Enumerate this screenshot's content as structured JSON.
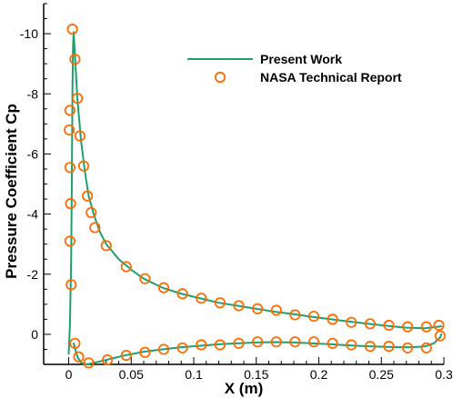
{
  "chart_data": {
    "type": "line",
    "xlabel": "X (m)",
    "ylabel": "Pressure Coefficient  Cp",
    "xlim": [
      -0.02,
      0.3
    ],
    "ylim": [
      1.0,
      -11.0
    ],
    "y_axis_inverted": true,
    "grid": false,
    "legend_position": "top-right",
    "x_ticks": [
      0,
      0.05,
      0.1,
      0.15,
      0.2,
      0.25,
      0.3
    ],
    "x_tick_labels": [
      "0",
      "0.05",
      "0.1",
      "0.15",
      "0.2",
      "0.25",
      "0.3"
    ],
    "y_ticks": [
      -10,
      -8,
      -6,
      -4,
      -2,
      0
    ],
    "y_tick_labels": [
      "-10",
      "-8",
      "-6",
      "-4",
      "-2",
      "0"
    ],
    "colors": {
      "line": "#1ea06a",
      "markers": "#ff6a00",
      "axes": "#000000"
    },
    "series": [
      {
        "name": "Present Work",
        "kind": "line",
        "segments": [
          [
            [
              0.0,
              0.65
            ],
            [
              0.001,
              -0.3
            ],
            [
              0.002,
              -2.5
            ],
            [
              0.0025,
              -5.0
            ],
            [
              0.003,
              -8.0
            ],
            [
              0.0035,
              -9.6
            ],
            [
              0.004,
              -10.05
            ],
            [
              0.005,
              -9.3
            ],
            [
              0.007,
              -7.8
            ],
            [
              0.01,
              -6.4
            ],
            [
              0.013,
              -5.4
            ],
            [
              0.016,
              -4.6
            ],
            [
              0.02,
              -4.0
            ],
            [
              0.025,
              -3.4
            ],
            [
              0.03,
              -3.0
            ],
            [
              0.04,
              -2.5
            ],
            [
              0.05,
              -2.15
            ],
            [
              0.06,
              -1.85
            ],
            [
              0.075,
              -1.55
            ],
            [
              0.09,
              -1.35
            ],
            [
              0.105,
              -1.2
            ],
            [
              0.12,
              -1.05
            ],
            [
              0.135,
              -0.95
            ],
            [
              0.15,
              -0.85
            ],
            [
              0.165,
              -0.75
            ],
            [
              0.18,
              -0.67
            ],
            [
              0.195,
              -0.58
            ],
            [
              0.21,
              -0.5
            ],
            [
              0.225,
              -0.42
            ],
            [
              0.24,
              -0.35
            ],
            [
              0.255,
              -0.28
            ],
            [
              0.27,
              -0.22
            ],
            [
              0.285,
              -0.2
            ],
            [
              0.295,
              -0.25
            ],
            [
              0.298,
              -0.27
            ]
          ],
          [
            [
              0.004,
              0.3
            ],
            [
              0.007,
              0.75
            ],
            [
              0.01,
              0.95
            ],
            [
              0.015,
              1.0
            ],
            [
              0.02,
              0.95
            ],
            [
              0.03,
              0.85
            ],
            [
              0.045,
              0.7
            ],
            [
              0.06,
              0.58
            ],
            [
              0.075,
              0.5
            ],
            [
              0.09,
              0.43
            ],
            [
              0.105,
              0.38
            ],
            [
              0.12,
              0.33
            ],
            [
              0.135,
              0.3
            ],
            [
              0.15,
              0.27
            ],
            [
              0.165,
              0.26
            ],
            [
              0.18,
              0.27
            ],
            [
              0.195,
              0.3
            ],
            [
              0.21,
              0.33
            ],
            [
              0.225,
              0.37
            ],
            [
              0.24,
              0.4
            ],
            [
              0.255,
              0.42
            ],
            [
              0.265,
              0.43
            ],
            [
              0.275,
              0.43
            ],
            [
              0.285,
              0.4
            ],
            [
              0.292,
              0.3
            ],
            [
              0.297,
              0.1
            ],
            [
              0.298,
              0.0
            ]
          ]
        ]
      },
      {
        "name": "NASA Technical Report",
        "kind": "scatter",
        "points": [
          [
            0.003,
            -10.15
          ],
          [
            0.005,
            -9.15
          ],
          [
            0.007,
            -7.85
          ],
          [
            0.009,
            -6.6
          ],
          [
            0.012,
            -5.6
          ],
          [
            0.015,
            -4.6
          ],
          [
            0.018,
            -4.05
          ],
          [
            0.021,
            -3.55
          ],
          [
            0.03,
            -2.95
          ],
          [
            0.046,
            -2.25
          ],
          [
            0.061,
            -1.85
          ],
          [
            0.076,
            -1.55
          ],
          [
            0.091,
            -1.35
          ],
          [
            0.106,
            -1.2
          ],
          [
            0.121,
            -1.05
          ],
          [
            0.136,
            -0.95
          ],
          [
            0.151,
            -0.85
          ],
          [
            0.166,
            -0.8
          ],
          [
            0.181,
            -0.65
          ],
          [
            0.196,
            -0.6
          ],
          [
            0.211,
            -0.5
          ],
          [
            0.226,
            -0.4
          ],
          [
            0.241,
            -0.35
          ],
          [
            0.256,
            -0.3
          ],
          [
            0.271,
            -0.25
          ],
          [
            0.286,
            -0.25
          ],
          [
            0.296,
            -0.3
          ],
          [
            0.001,
            -7.45
          ],
          [
            0.0005,
            -6.8
          ],
          [
            0.001,
            -5.55
          ],
          [
            0.0015,
            -4.35
          ],
          [
            0.001,
            -3.1
          ],
          [
            0.002,
            -1.65
          ],
          [
            0.005,
            0.3
          ],
          [
            0.008,
            0.75
          ],
          [
            0.016,
            0.95
          ],
          [
            0.031,
            0.85
          ],
          [
            0.046,
            0.7
          ],
          [
            0.061,
            0.6
          ],
          [
            0.076,
            0.5
          ],
          [
            0.091,
            0.45
          ],
          [
            0.106,
            0.35
          ],
          [
            0.121,
            0.35
          ],
          [
            0.136,
            0.3
          ],
          [
            0.151,
            0.25
          ],
          [
            0.166,
            0.25
          ],
          [
            0.181,
            0.25
          ],
          [
            0.196,
            0.25
          ],
          [
            0.211,
            0.3
          ],
          [
            0.226,
            0.35
          ],
          [
            0.241,
            0.4
          ],
          [
            0.256,
            0.4
          ],
          [
            0.271,
            0.45
          ],
          [
            0.286,
            0.45
          ],
          [
            0.297,
            0.05
          ]
        ]
      }
    ]
  }
}
